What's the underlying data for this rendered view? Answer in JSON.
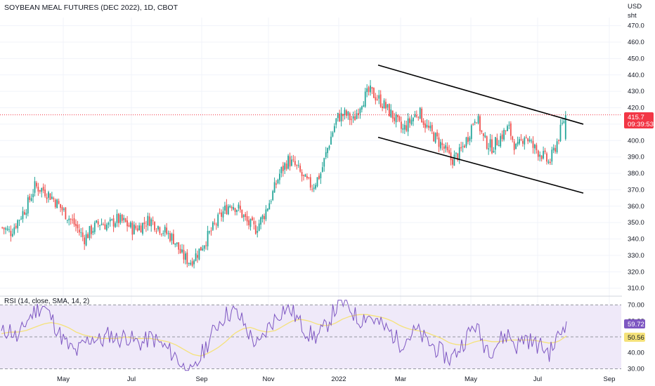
{
  "header": {
    "title": "SOYBEAN MEAL FUTURES (DEC 2022), 1D, CBOT"
  },
  "price_axis": {
    "currency": "USD",
    "unit": "sht",
    "ticks": [
      "470.0",
      "460.0",
      "450.0",
      "440.0",
      "430.0",
      "420.0",
      "410.0",
      "400.0",
      "390.0",
      "380.0",
      "370.0",
      "360.0",
      "350.0",
      "340.0",
      "330.0",
      "320.0",
      "310.0"
    ],
    "last_price": "415.7",
    "countdown": "09:39:53",
    "last_price_color": "#f23645"
  },
  "rsi": {
    "title": "RSI (14, close, SMA, 14, 2)",
    "ticks": [
      "70.00",
      "60.00",
      "50.00",
      "40.00",
      "30.00"
    ],
    "rsi_value": "59.72",
    "sma_value": "50.56",
    "rsi_color": "#7e57c2",
    "sma_color": "#f5e27a",
    "band_color": "#efe9f9"
  },
  "time_axis": {
    "labels": [
      "May",
      "Jul",
      "Sep",
      "Nov",
      "2022",
      "Mar",
      "May",
      "Jul",
      "Sep"
    ]
  },
  "colors": {
    "up": "#26a69a",
    "down": "#ef5350",
    "channel": "#000000",
    "grid": "#f0f3fa"
  },
  "chart_data": [
    {
      "type": "candlestick",
      "title": "SOYBEAN MEAL FUTURES (DEC 2022), 1D, CBOT",
      "ylabel": "USD / sht",
      "ylim": [
        306,
        475
      ],
      "x_labels": [
        "May",
        "Jul",
        "Sep",
        "Nov",
        "2022",
        "Mar",
        "May",
        "Jul",
        "Sep"
      ],
      "approx_closes": [
        347,
        344,
        352,
        360,
        372,
        370,
        366,
        360,
        354,
        348,
        340,
        346,
        350,
        348,
        352,
        350,
        346,
        348,
        352,
        348,
        344,
        340,
        330,
        326,
        332,
        340,
        348,
        356,
        362,
        358,
        350,
        346,
        354,
        366,
        380,
        388,
        384,
        376,
        372,
        380,
        398,
        414,
        416,
        412,
        424,
        430,
        426,
        420,
        414,
        406,
        412,
        418,
        408,
        402,
        396,
        388,
        392,
        402,
        416,
        400,
        396,
        402,
        408,
        394,
        404,
        396,
        392,
        386,
        400,
        416
      ],
      "trend_channel": {
        "upper": [
          [
            0,
            446
          ],
          [
            1,
            410
          ]
        ],
        "lower": [
          [
            0,
            402
          ],
          [
            1,
            368
          ]
        ]
      },
      "last_price": 415.7
    },
    {
      "type": "line",
      "title": "RSI (14, close, SMA, 14, 2)",
      "ylim": [
        28,
        72
      ],
      "bands": [
        30,
        50,
        70
      ],
      "series": [
        {
          "name": "RSI",
          "values": [
            52,
            55,
            48,
            60,
            66,
            70,
            62,
            52,
            44,
            40,
            46,
            50,
            47,
            52,
            48,
            51,
            47,
            46,
            50,
            46,
            42,
            38,
            30,
            26,
            38,
            48,
            58,
            64,
            66,
            60,
            50,
            44,
            55,
            62,
            68,
            66,
            58,
            52,
            50,
            56,
            66,
            72,
            68,
            60,
            64,
            60,
            56,
            52,
            46,
            50,
            54,
            48,
            44,
            40,
            36,
            42,
            50,
            58,
            46,
            42,
            48,
            52,
            44,
            50,
            46,
            44,
            40,
            50,
            59.72
          ]
        },
        {
          "name": "SMA",
          "values": [
            52,
            53,
            53,
            54,
            56,
            58,
            59,
            58,
            56,
            53,
            51,
            50,
            49,
            49,
            49,
            50,
            49,
            49,
            49,
            48,
            47,
            45,
            42,
            39,
            38,
            40,
            43,
            47,
            52,
            55,
            56,
            54,
            53,
            54,
            57,
            60,
            61,
            60,
            58,
            57,
            58,
            61,
            63,
            64,
            64,
            63,
            62,
            60,
            57,
            55,
            54,
            53,
            51,
            49,
            46,
            45,
            45,
            47,
            48,
            47,
            47,
            48,
            48,
            48,
            48,
            47,
            46,
            47,
            50.56
          ]
        }
      ],
      "last_values": {
        "RSI": 59.72,
        "SMA": 50.56
      }
    }
  ]
}
